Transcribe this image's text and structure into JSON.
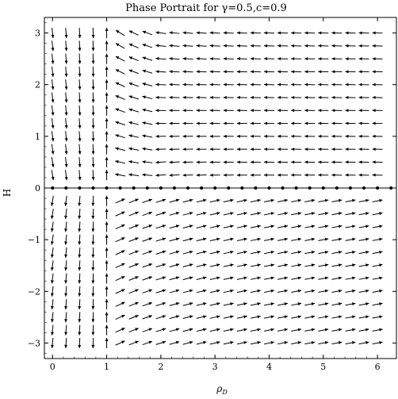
{
  "chart_data": {
    "type": "vector-field",
    "title": "Phase Portrait for γ=0.5,c=0.9",
    "xlabel": "ρ_D",
    "xlabel_base": "ρ",
    "xlabel_sub": "D",
    "ylabel": "H",
    "xlim": [
      -0.15,
      6.35
    ],
    "ylim": [
      -3.3,
      3.3
    ],
    "xticks": [
      0,
      1,
      2,
      3,
      4,
      5,
      6
    ],
    "yticks": [
      -3,
      -2,
      -1,
      0,
      1,
      2,
      3
    ],
    "grid": false,
    "gamma": 0.5,
    "c": 0.9,
    "arrow_grid": {
      "x_start": 0,
      "x_end": 6,
      "x_step": 0.25,
      "y_start": -3.0,
      "y_end": 3.0,
      "y_step": 0.25
    },
    "separatrix_rho": 1.0,
    "fixed_points_line_h": 0,
    "fixed_point_count": 26
  }
}
